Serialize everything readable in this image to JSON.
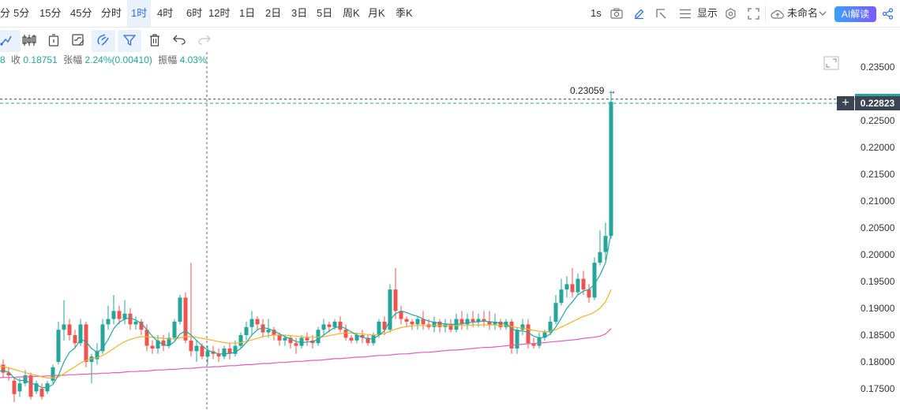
{
  "timeframes": [
    "分",
    "5分",
    "15分",
    "45分",
    "分时",
    "1时",
    "4时",
    "6时",
    "12时",
    "1日",
    "2日",
    "3日",
    "5日",
    "周K",
    "月K",
    "季K"
  ],
  "active_timeframe": "1时",
  "topbar_right": {
    "interval": "1s",
    "display_label": "显示",
    "layout_name": "未命名",
    "ai_label": "AI解读"
  },
  "toolbar_icons": [
    "draw-icon",
    "candles-icon",
    "compare-icon",
    "indicators-icon",
    "magnet-icon",
    "filter-icon",
    "trash-icon",
    "undo-icon",
    "redo-icon"
  ],
  "ohlc": {
    "open_fragment": "8",
    "close_label": "收",
    "close_value": "0.18751",
    "change_label": "张幅",
    "change_value": "2.24%(0.00410)",
    "amplitude_label": "振幅",
    "amplitude_value": "4.03%"
  },
  "price_axis": {
    "labels": [
      "0.23500",
      "0.22500",
      "0.22000",
      "0.21500",
      "0.21000",
      "0.20500",
      "0.20000",
      "0.19500",
      "0.19000",
      "0.18500",
      "0.18000",
      "0.17500"
    ],
    "current_price": "0.22823",
    "high_marker": "0.23059 →"
  },
  "colors": {
    "up": "#26a69a",
    "down": "#ef5350",
    "ma_fast": "#26a69a",
    "ma_mid": "#f0b429",
    "ma_slow": "#e05fb8",
    "accent": "#2f6fe0"
  },
  "chart_data": {
    "type": "candlestick",
    "ylim": [
      0.1725,
      0.2375
    ],
    "candles": [
      [
        0.177,
        0.178,
        0.176,
        0.1785
      ],
      [
        0.179,
        0.1795,
        0.1775,
        0.18
      ],
      [
        0.1795,
        0.178,
        0.177,
        0.1805
      ],
      [
        0.178,
        0.1775,
        0.1765,
        0.179
      ],
      [
        0.1765,
        0.174,
        0.1725,
        0.177
      ],
      [
        0.1745,
        0.176,
        0.1735,
        0.177
      ],
      [
        0.176,
        0.1775,
        0.1755,
        0.1785
      ],
      [
        0.1775,
        0.1735,
        0.173,
        0.178
      ],
      [
        0.1745,
        0.176,
        0.174,
        0.1765
      ],
      [
        0.175,
        0.1735,
        0.173,
        0.176
      ],
      [
        0.1745,
        0.176,
        0.174,
        0.1765
      ],
      [
        0.1765,
        0.179,
        0.176,
        0.1795
      ],
      [
        0.18,
        0.186,
        0.1795,
        0.1875
      ],
      [
        0.186,
        0.187,
        0.184,
        0.1915
      ],
      [
        0.187,
        0.185,
        0.184,
        0.188
      ],
      [
        0.185,
        0.1835,
        0.1825,
        0.186
      ],
      [
        0.1835,
        0.187,
        0.183,
        0.188
      ],
      [
        0.187,
        0.18,
        0.179,
        0.1875
      ],
      [
        0.18,
        0.181,
        0.176,
        0.1815
      ],
      [
        0.1805,
        0.182,
        0.1795,
        0.1835
      ],
      [
        0.182,
        0.187,
        0.1815,
        0.188
      ],
      [
        0.187,
        0.188,
        0.186,
        0.1905
      ],
      [
        0.188,
        0.1895,
        0.187,
        0.1925
      ],
      [
        0.1895,
        0.188,
        0.187,
        0.1905
      ],
      [
        0.188,
        0.189,
        0.187,
        0.1915
      ],
      [
        0.189,
        0.187,
        0.186,
        0.19
      ],
      [
        0.187,
        0.1875,
        0.186,
        0.1885
      ],
      [
        0.1875,
        0.186,
        0.185,
        0.188
      ],
      [
        0.186,
        0.183,
        0.182,
        0.187
      ],
      [
        0.183,
        0.1825,
        0.1815,
        0.184
      ],
      [
        0.1825,
        0.184,
        0.1815,
        0.185
      ],
      [
        0.184,
        0.183,
        0.182,
        0.185
      ],
      [
        0.183,
        0.1845,
        0.1825,
        0.1855
      ],
      [
        0.1845,
        0.1875,
        0.184,
        0.188
      ],
      [
        0.1875,
        0.192,
        0.187,
        0.1925
      ],
      [
        0.192,
        0.184,
        0.1835,
        0.193
      ],
      [
        0.184,
        0.182,
        0.181,
        0.1985
      ],
      [
        0.182,
        0.183,
        0.18,
        0.184
      ],
      [
        0.183,
        0.181,
        0.1805,
        0.1835
      ],
      [
        0.181,
        0.182,
        0.1795,
        0.183
      ],
      [
        0.182,
        0.1815,
        0.1805,
        0.183
      ],
      [
        0.1815,
        0.181,
        0.18,
        0.1825
      ],
      [
        0.181,
        0.1825,
        0.1805,
        0.183
      ],
      [
        0.1825,
        0.1815,
        0.1805,
        0.1835
      ],
      [
        0.1815,
        0.183,
        0.181,
        0.184
      ],
      [
        0.183,
        0.185,
        0.1825,
        0.1855
      ],
      [
        0.185,
        0.1865,
        0.184,
        0.1875
      ],
      [
        0.1865,
        0.188,
        0.185,
        0.1895
      ],
      [
        0.188,
        0.187,
        0.186,
        0.1885
      ],
      [
        0.187,
        0.1855,
        0.1845,
        0.188
      ],
      [
        0.1855,
        0.186,
        0.1845,
        0.188
      ],
      [
        0.186,
        0.185,
        0.184,
        0.1865
      ],
      [
        0.185,
        0.184,
        0.183,
        0.1855
      ],
      [
        0.184,
        0.1845,
        0.183,
        0.185
      ],
      [
        0.1845,
        0.1835,
        0.1825,
        0.185
      ],
      [
        0.1835,
        0.183,
        0.1815,
        0.1845
      ],
      [
        0.183,
        0.1845,
        0.1825,
        0.185
      ],
      [
        0.1845,
        0.184,
        0.183,
        0.1855
      ],
      [
        0.184,
        0.1835,
        0.1825,
        0.185
      ],
      [
        0.1835,
        0.186,
        0.183,
        0.1865
      ],
      [
        0.186,
        0.187,
        0.185,
        0.188
      ],
      [
        0.187,
        0.1865,
        0.1855,
        0.1875
      ],
      [
        0.1865,
        0.1875,
        0.186,
        0.188
      ],
      [
        0.1875,
        0.186,
        0.1855,
        0.1885
      ],
      [
        0.186,
        0.1845,
        0.184,
        0.187
      ],
      [
        0.1845,
        0.184,
        0.1835,
        0.185
      ],
      [
        0.184,
        0.185,
        0.1835,
        0.1855
      ],
      [
        0.185,
        0.1845,
        0.1835,
        0.186
      ],
      [
        0.1845,
        0.1835,
        0.183,
        0.185
      ],
      [
        0.1835,
        0.185,
        0.183,
        0.1855
      ],
      [
        0.185,
        0.1875,
        0.1845,
        0.188
      ],
      [
        0.1875,
        0.186,
        0.185,
        0.1885
      ],
      [
        0.186,
        0.1935,
        0.1855,
        0.1945
      ],
      [
        0.1935,
        0.1895,
        0.188,
        0.1975
      ],
      [
        0.1895,
        0.188,
        0.187,
        0.1905
      ],
      [
        0.188,
        0.1875,
        0.1865,
        0.1885
      ],
      [
        0.1875,
        0.187,
        0.186,
        0.188
      ],
      [
        0.187,
        0.188,
        0.186,
        0.1885
      ],
      [
        0.188,
        0.187,
        0.186,
        0.1895
      ],
      [
        0.187,
        0.1865,
        0.186,
        0.188
      ],
      [
        0.1865,
        0.1875,
        0.1855,
        0.1885
      ],
      [
        0.1875,
        0.1865,
        0.1855,
        0.188
      ],
      [
        0.1865,
        0.187,
        0.1855,
        0.188
      ],
      [
        0.187,
        0.186,
        0.1855,
        0.188
      ],
      [
        0.186,
        0.188,
        0.1855,
        0.189
      ],
      [
        0.188,
        0.187,
        0.186,
        0.1895
      ],
      [
        0.187,
        0.188,
        0.186,
        0.189
      ],
      [
        0.188,
        0.1875,
        0.1865,
        0.1895
      ],
      [
        0.1875,
        0.188,
        0.1865,
        0.189
      ],
      [
        0.188,
        0.1875,
        0.1865,
        0.1895
      ],
      [
        0.1875,
        0.187,
        0.186,
        0.1895
      ],
      [
        0.187,
        0.1875,
        0.186,
        0.189
      ],
      [
        0.1875,
        0.1865,
        0.186,
        0.188
      ],
      [
        0.1865,
        0.1875,
        0.186,
        0.188
      ],
      [
        0.1875,
        0.1825,
        0.1815,
        0.188
      ],
      [
        0.1825,
        0.186,
        0.1815,
        0.1865
      ],
      [
        0.186,
        0.187,
        0.185,
        0.188
      ],
      [
        0.187,
        0.1835,
        0.1825,
        0.188
      ],
      [
        0.1835,
        0.183,
        0.1825,
        0.1845
      ],
      [
        0.183,
        0.1845,
        0.1825,
        0.1855
      ],
      [
        0.1845,
        0.1855,
        0.184,
        0.186
      ],
      [
        0.1855,
        0.1875,
        0.185,
        0.1885
      ],
      [
        0.1875,
        0.191,
        0.187,
        0.1925
      ],
      [
        0.191,
        0.1935,
        0.1905,
        0.1955
      ],
      [
        0.1935,
        0.1945,
        0.192,
        0.196
      ],
      [
        0.1945,
        0.193,
        0.192,
        0.1975
      ],
      [
        0.193,
        0.1955,
        0.1925,
        0.1965
      ],
      [
        0.1955,
        0.1935,
        0.1925,
        0.197
      ],
      [
        0.1935,
        0.192,
        0.191,
        0.1945
      ],
      [
        0.192,
        0.1985,
        0.1915,
        0.1995
      ],
      [
        0.1985,
        0.2005,
        0.198,
        0.2045
      ],
      [
        0.2005,
        0.2035,
        0.199,
        0.206
      ],
      [
        0.2035,
        0.2285,
        0.203,
        0.2306
      ]
    ],
    "ma_fast": [
      0.178,
      0.1782,
      0.1784,
      0.1781,
      0.177,
      0.1765,
      0.1766,
      0.176,
      0.1758,
      0.1752,
      0.1752,
      0.1758,
      0.1775,
      0.18,
      0.1818,
      0.1826,
      0.1842,
      0.1838,
      0.1825,
      0.1818,
      0.1825,
      0.1842,
      0.1862,
      0.1874,
      0.188,
      0.1882,
      0.1878,
      0.1872,
      0.186,
      0.1848,
      0.1838,
      0.1832,
      0.183,
      0.1838,
      0.1852,
      0.1858,
      0.185,
      0.184,
      0.183,
      0.1822,
      0.1818,
      0.1815,
      0.1815,
      0.1816,
      0.1818,
      0.1825,
      0.1836,
      0.185,
      0.186,
      0.1864,
      0.1862,
      0.1858,
      0.1852,
      0.1847,
      0.1843,
      0.1838,
      0.1836,
      0.1837,
      0.1838,
      0.1842,
      0.185,
      0.1858,
      0.1864,
      0.1866,
      0.1862,
      0.1856,
      0.185,
      0.1846,
      0.1843,
      0.1843,
      0.185,
      0.1858,
      0.1878,
      0.189,
      0.1895,
      0.1892,
      0.1888,
      0.1885,
      0.188,
      0.1876,
      0.1874,
      0.1872,
      0.1871,
      0.187,
      0.187,
      0.1871,
      0.1873,
      0.1874,
      0.1875,
      0.1876,
      0.1875,
      0.1874,
      0.1872,
      0.1872,
      0.1862,
      0.1858,
      0.1858,
      0.1855,
      0.1848,
      0.1845,
      0.1846,
      0.1852,
      0.1865,
      0.1882,
      0.19,
      0.1912,
      0.1925,
      0.1932,
      0.1935,
      0.1945,
      0.1962,
      0.1985,
      0.204
    ],
    "ma_mid": [
      0.1795,
      0.1793,
      0.1791,
      0.1789,
      0.1786,
      0.1783,
      0.178,
      0.1777,
      0.1775,
      0.1772,
      0.177,
      0.177,
      0.1772,
      0.1778,
      0.1785,
      0.1791,
      0.1798,
      0.1803,
      0.1806,
      0.1808,
      0.1812,
      0.1818,
      0.1825,
      0.1832,
      0.1838,
      0.1842,
      0.1845,
      0.1847,
      0.1847,
      0.1846,
      0.1845,
      0.1844,
      0.1843,
      0.1843,
      0.1845,
      0.1847,
      0.1847,
      0.1846,
      0.1844,
      0.1842,
      0.184,
      0.1838,
      0.1836,
      0.1835,
      0.1835,
      0.1836,
      0.1838,
      0.1841,
      0.1844,
      0.1847,
      0.1849,
      0.185,
      0.185,
      0.185,
      0.1849,
      0.1848,
      0.1847,
      0.1846,
      0.1846,
      0.1846,
      0.1847,
      0.1849,
      0.1851,
      0.1853,
      0.1854,
      0.1854,
      0.1853,
      0.1852,
      0.1851,
      0.185,
      0.1851,
      0.1853,
      0.1857,
      0.1861,
      0.1864,
      0.1866,
      0.1867,
      0.1868,
      0.1868,
      0.1868,
      0.1868,
      0.1868,
      0.1868,
      0.1868,
      0.1868,
      0.1868,
      0.1868,
      0.1869,
      0.1869,
      0.1869,
      0.1869,
      0.1869,
      0.1868,
      0.1868,
      0.1866,
      0.1864,
      0.1863,
      0.1861,
      0.1859,
      0.1857,
      0.1856,
      0.1857,
      0.186,
      0.1865,
      0.187,
      0.1875,
      0.188,
      0.1885,
      0.1888,
      0.1893,
      0.19,
      0.1912,
      0.1935
    ],
    "ma_slow": [
      0.177,
      0.177,
      0.1771,
      0.1771,
      0.1771,
      0.1772,
      0.1772,
      0.1772,
      0.1773,
      0.1773,
      0.1774,
      0.1774,
      0.1775,
      0.1775,
      0.1776,
      0.1776,
      0.1777,
      0.1777,
      0.1778,
      0.1778,
      0.1779,
      0.1779,
      0.178,
      0.178,
      0.1781,
      0.1782,
      0.1782,
      0.1783,
      0.1783,
      0.1784,
      0.1785,
      0.1785,
      0.1786,
      0.1786,
      0.1787,
      0.1788,
      0.1788,
      0.1789,
      0.179,
      0.179,
      0.1791,
      0.1791,
      0.1792,
      0.1793,
      0.1793,
      0.1794,
      0.1795,
      0.1795,
      0.1796,
      0.1797,
      0.1797,
      0.1798,
      0.1799,
      0.1799,
      0.18,
      0.1801,
      0.1801,
      0.1802,
      0.1803,
      0.1803,
      0.1804,
      0.1805,
      0.1806,
      0.1806,
      0.1807,
      0.1808,
      0.1809,
      0.1809,
      0.181,
      0.1811,
      0.1812,
      0.1812,
      0.1813,
      0.1814,
      0.1815,
      0.1815,
      0.1816,
      0.1817,
      0.1818,
      0.1818,
      0.1819,
      0.182,
      0.1821,
      0.1822,
      0.1822,
      0.1823,
      0.1824,
      0.1825,
      0.1826,
      0.1827,
      0.1827,
      0.1828,
      0.1829,
      0.183,
      0.1831,
      0.1832,
      0.1833,
      0.1834,
      0.1834,
      0.1835,
      0.1836,
      0.1837,
      0.1838,
      0.1839,
      0.184,
      0.1841,
      0.1842,
      0.1844,
      0.1845,
      0.1846,
      0.1848,
      0.1852,
      0.1862
    ]
  }
}
